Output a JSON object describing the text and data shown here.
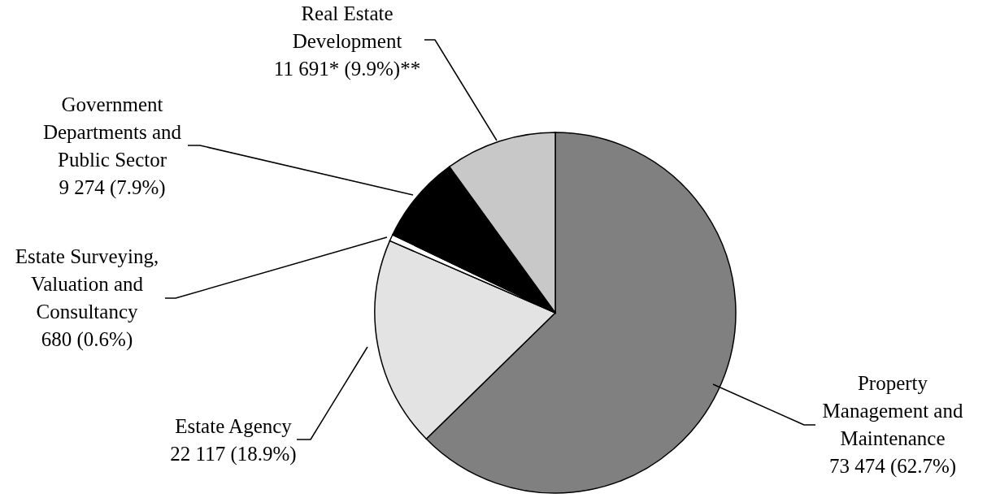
{
  "chart_data": {
    "type": "pie",
    "categories": [
      "Property Management and Maintenance",
      "Estate Agency",
      "Estate Surveying, Valuation and Consultancy",
      "Government Departments and Public Sector",
      "Real Estate Development"
    ],
    "values": [
      73474,
      22117,
      680,
      9274,
      11691
    ],
    "colors": [
      "#808080",
      "#e3e3e3",
      "#ffffff",
      "#000000",
      "#c8c8c8"
    ],
    "value_labels": [
      "73 474 (62.7%)",
      "22 117 (18.9%)",
      "680 (0.6%)",
      "9 274 (7.9%)",
      "11 691* (9.9%)**"
    ]
  }
}
